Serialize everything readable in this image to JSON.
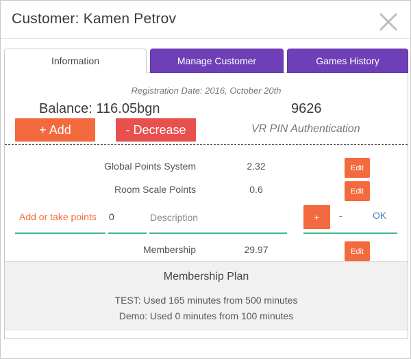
{
  "dialog": {
    "title": "Customer: Kamen Petrov"
  },
  "tabs": [
    {
      "label": "Information",
      "active": true
    },
    {
      "label": "Manage Customer",
      "active": false
    },
    {
      "label": "Games History",
      "active": false
    }
  ],
  "info": {
    "registration_date": "Registration Date: 2016, October 20th",
    "balance": "Balance: 116.05bgn",
    "pin_number": "9626",
    "pin_label": "VR PIN Authentication",
    "add_button": "+ Add",
    "decrease_button": "- Decrease"
  },
  "points": [
    {
      "label": "Global Points System",
      "value": "2.32",
      "edit_label": "Edit"
    },
    {
      "label": "Room Scale Points",
      "value": "0.6",
      "edit_label": "Edit"
    }
  ],
  "points_form": {
    "label": "Add or take points",
    "amount_value": "0",
    "description_placeholder": "Description",
    "plus_button": "+",
    "minus_link": "-",
    "ok_link": "OK"
  },
  "membership": {
    "label": "Membership",
    "value": "29.97",
    "edit_label": "Edit"
  },
  "membership_plan": {
    "title": "Membership Plan",
    "lines": [
      "TEST: Used 165 minutes from 500 minutes",
      "Demo: Used 0 minutes from 100 minutes"
    ]
  },
  "colors": {
    "tab_purple": "#6f3fb8",
    "orange": "#f26a3e",
    "red": "#e8504e",
    "green_underline": "#3fb98a",
    "link_blue": "#4a7fc0"
  },
  "icons": {
    "close": "close-icon"
  }
}
